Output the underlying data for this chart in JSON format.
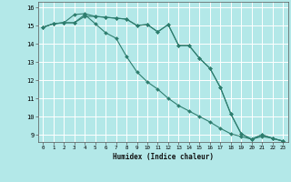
{
  "xlabel": "Humidex (Indice chaleur)",
  "bg_color": "#b3e8e8",
  "line_color": "#2e7d6e",
  "grid_color": "#ffffff",
  "xlim": [
    -0.5,
    23.5
  ],
  "ylim": [
    8.6,
    16.3
  ],
  "x": [
    0,
    1,
    2,
    3,
    4,
    5,
    6,
    7,
    8,
    9,
    10,
    11,
    12,
    13,
    14,
    15,
    16,
    17,
    18,
    19,
    20,
    21,
    22,
    23
  ],
  "curve1": [
    14.9,
    15.1,
    15.15,
    15.15,
    15.5,
    15.5,
    15.45,
    15.4,
    15.35,
    15.0,
    15.05,
    14.65,
    15.05,
    13.9,
    13.9,
    13.2,
    12.65,
    11.6,
    10.15,
    9.05,
    8.75,
    9.0,
    8.8,
    8.65
  ],
  "curve2": [
    14.9,
    15.1,
    15.15,
    15.6,
    15.65,
    15.5,
    15.45,
    15.4,
    15.35,
    15.0,
    15.05,
    14.65,
    15.05,
    13.9,
    13.9,
    13.2,
    12.65,
    11.6,
    10.15,
    9.05,
    8.75,
    9.0,
    8.8,
    8.65
  ],
  "curve3": [
    14.9,
    15.1,
    15.15,
    15.15,
    15.6,
    15.1,
    14.6,
    14.3,
    13.3,
    12.45,
    11.9,
    11.5,
    11.0,
    10.6,
    10.3,
    10.0,
    9.7,
    9.35,
    9.05,
    8.9,
    8.75,
    8.9,
    8.8,
    8.65
  ],
  "yticks": [
    9,
    10,
    11,
    12,
    13,
    14,
    15,
    16
  ],
  "xticks": [
    0,
    1,
    2,
    3,
    4,
    5,
    6,
    7,
    8,
    9,
    10,
    11,
    12,
    13,
    14,
    15,
    16,
    17,
    18,
    19,
    20,
    21,
    22,
    23
  ]
}
